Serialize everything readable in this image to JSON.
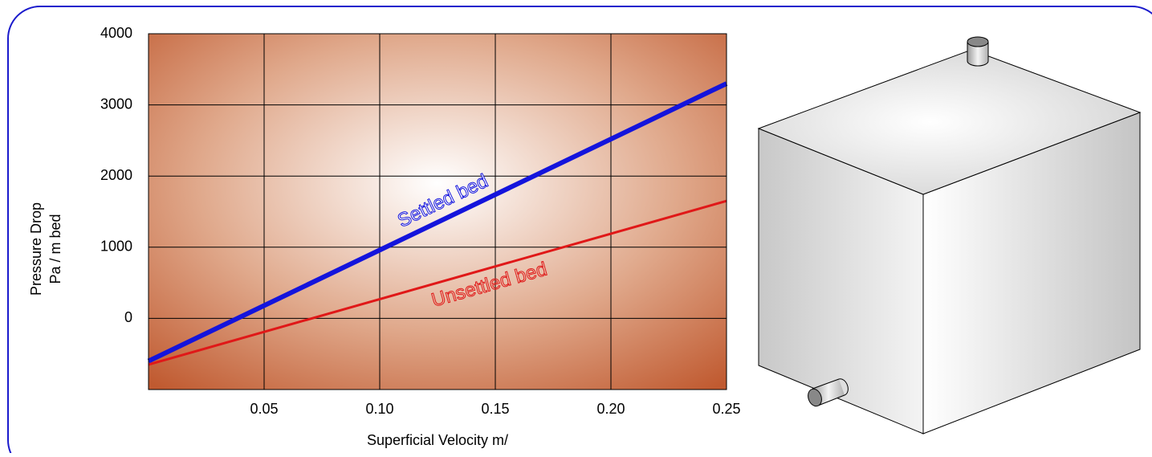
{
  "chart_data": {
    "type": "line",
    "x": [
      0,
      0.25
    ],
    "series": [
      {
        "name": "Settled bed",
        "color": "#1414dc",
        "values": [
          -600,
          3300
        ]
      },
      {
        "name": "Unsettled bed",
        "color": "#e01818",
        "values": [
          -650,
          1650
        ]
      }
    ],
    "xlim": [
      0,
      0.25
    ],
    "xticks": [
      0.05,
      {
        "value": 0.1,
        "label": "0.10"
      },
      0.15,
      {
        "value": 0.2,
        "label": "0.20"
      },
      0.25
    ],
    "ylim": [
      -1000,
      4000
    ],
    "yticks": [
      0,
      1000,
      2000,
      3000,
      4000
    ],
    "x_label": "Superficial Velocity m/",
    "y_label": [
      "Pressure Drop",
      "Pa / m bed"
    ],
    "grid": true
  }
}
